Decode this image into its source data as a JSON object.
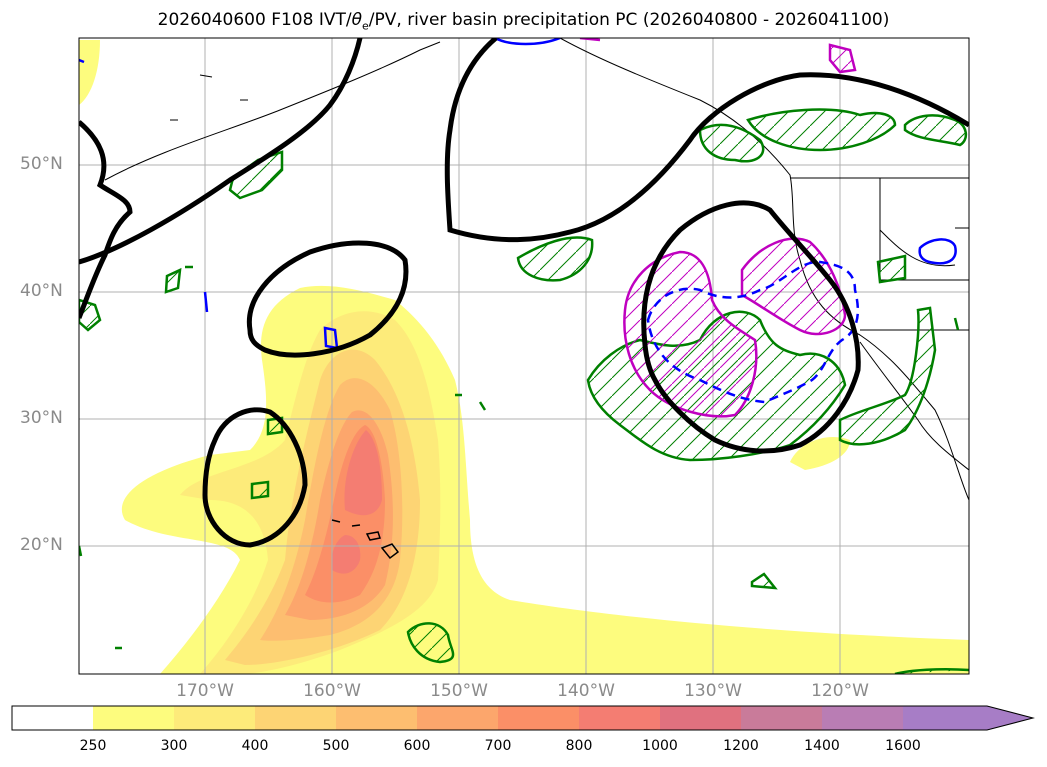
{
  "title": {
    "prefix": "2026040600 F108 IVT/",
    "theta": "θ",
    "theta_sub": "e",
    "suffix": "/PV, river basin precipitation PC (2026040800 - 2026041100)"
  },
  "axes": {
    "lat_labels": [
      "50°N",
      "40°N",
      "30°N",
      "20°N"
    ],
    "lon_labels": [
      "170°W",
      "160°W",
      "150°W",
      "140°W",
      "130°W",
      "120°W"
    ]
  },
  "colorbar": {
    "ticks": [
      "250",
      "300",
      "400",
      "500",
      "600",
      "700",
      "800",
      "1000",
      "1200",
      "1400",
      "1600"
    ],
    "colors": [
      "#ffffff",
      "#fdfc7e",
      "#fdeb7a",
      "#fdd474",
      "#fdbe70",
      "#fca66c",
      "#fb8f67",
      "#f47d72",
      "#e0717f",
      "#c97b9a",
      "#b97db4",
      "#a77dc6"
    ]
  },
  "legend_colors": {
    "ivt_contour": "#000000",
    "green_hatch": "#008000",
    "magenta_hatch": "#bf00bf",
    "blue_contour": "#0000ff"
  }
}
